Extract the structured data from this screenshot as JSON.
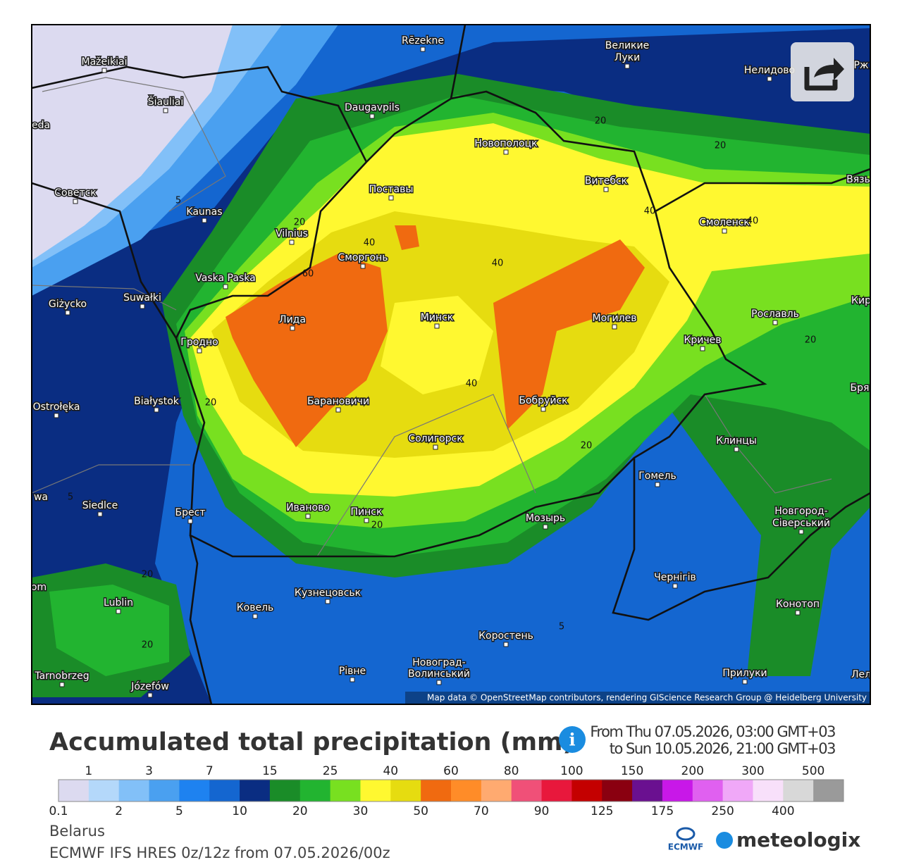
{
  "map": {
    "cities": [
      "Rēzekne",
      "Великие",
      "Луки",
      "Mažeikiai",
      "Šiauliai",
      "Daugavpils",
      "Новополоцк",
      "Нелидово",
      "Рж",
      "Советск",
      "Kaunas",
      "Поставы",
      "Витебск",
      "Смоленск",
      "Вязь",
      "Vilnius",
      "Сморгонь",
      "Vaska Paska",
      "Giżycko",
      "Suwałki",
      "Минск",
      "Могилев",
      "Рославль",
      "Кир",
      "Лида",
      "Гродно",
      "Кричев",
      "Białystok",
      "Барановичи",
      "Бобруйск",
      "Бря",
      "Ostrołęka",
      "Солигорск",
      "Клинцы",
      "Гомель",
      "Siedlce",
      "Брест",
      "Иваново",
      "Пинск",
      "Мозырь",
      "Новгород-",
      "Сiверський",
      "Кузнецовськ",
      "Чернiгiв",
      "Ковель",
      "Lublin",
      "Конотоп",
      "Коростень",
      "Tarnobrzeg",
      "Józefów",
      "Рiвне",
      "Новоград-",
      "Волинський",
      "Прилуки",
      "Лел",
      "eda",
      "om",
      "wa"
    ],
    "contour_labels": [
      20,
      20,
      40,
      40,
      20,
      40,
      40,
      60,
      40,
      20,
      20,
      20,
      5,
      20,
      20,
      20,
      5,
      5
    ],
    "attribution": "Map data © OpenStreetMap contributors, rendering GIScience Research Group @ Heidelberg University"
  },
  "header": {
    "title": "Accumulated total precipitation (mm)",
    "from": "From Thu 07.05.2026, 03:00 GMT+03",
    "to": "to Sun 10.05.2026, 21:00 GMT+03"
  },
  "legend": {
    "colors": [
      "#dcdaf0",
      "#b4d8fa",
      "#82c0f8",
      "#4aa0f0",
      "#1e82f0",
      "#1466d0",
      "#0a2d82",
      "#1a8c28",
      "#22b430",
      "#78e020",
      "#fff830",
      "#e6dc10",
      "#f06a10",
      "#ff8c28",
      "#ffaa70",
      "#f05078",
      "#e8183c",
      "#c40000",
      "#8a0010",
      "#6a1090",
      "#c818e8",
      "#e060f0",
      "#f0a8f8",
      "#f8e0fa",
      "#d8d8d8",
      "#9a9a9a"
    ],
    "bottom_labels": [
      0.1,
      2,
      5,
      10,
      20,
      30,
      50,
      70,
      90,
      125,
      175,
      250,
      400
    ],
    "top_labels": [
      1,
      3,
      7,
      15,
      25,
      40,
      60,
      80,
      100,
      150,
      200,
      300,
      500
    ]
  },
  "footer": {
    "region": "Belarus",
    "model": "ECMWF IFS HRES 0z/12z from 07.05.2026/00z",
    "logo1": "ECMWF",
    "logo2": "meteologix"
  }
}
